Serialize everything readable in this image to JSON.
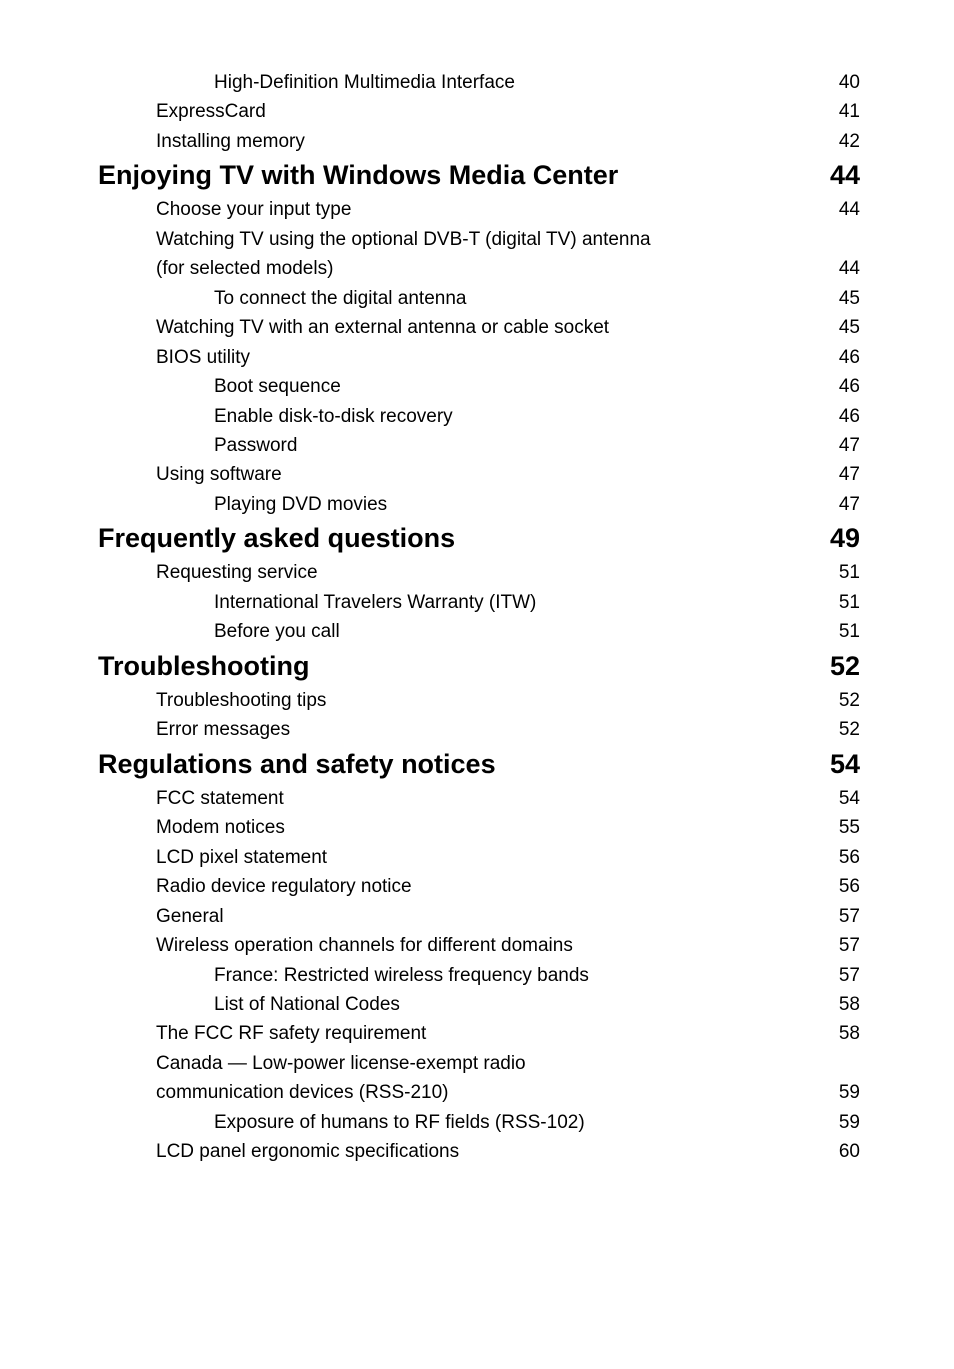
{
  "font": {
    "family": "Arial, Helvetica, sans-serif",
    "color": "#000000",
    "l1_size_pt": 20,
    "l2_size_pt": 14,
    "l3_size_pt": 14
  },
  "background_color": "#ffffff",
  "toc": [
    {
      "level": 3,
      "label": "High-Definition Multimedia Interface",
      "page": "40"
    },
    {
      "level": 2,
      "label": "ExpressCard",
      "page": "41"
    },
    {
      "level": 2,
      "label": "Installing memory",
      "page": "42"
    },
    {
      "level": 1,
      "label": "Enjoying TV with Windows Media Center",
      "page": "44"
    },
    {
      "level": 2,
      "label": "Choose your input type",
      "page": "44"
    },
    {
      "level": 2,
      "label": "Watching TV using the optional DVB-T (digital TV) antenna",
      "page": ""
    },
    {
      "level": 2,
      "label": "(for selected models)",
      "page": "44"
    },
    {
      "level": 3,
      "label": "To connect the digital antenna",
      "page": "45"
    },
    {
      "level": 2,
      "label": "Watching TV with an external antenna or cable socket",
      "page": "45"
    },
    {
      "level": 2,
      "label": "BIOS utility",
      "page": "46"
    },
    {
      "level": 3,
      "label": "Boot sequence",
      "page": "46"
    },
    {
      "level": 3,
      "label": "Enable disk-to-disk recovery",
      "page": "46"
    },
    {
      "level": 3,
      "label": "Password",
      "page": "47"
    },
    {
      "level": 2,
      "label": "Using software",
      "page": "47"
    },
    {
      "level": 3,
      "label": "Playing DVD movies",
      "page": "47"
    },
    {
      "level": 1,
      "label": "Frequently asked questions",
      "page": "49"
    },
    {
      "level": 2,
      "label": "Requesting service",
      "page": "51"
    },
    {
      "level": 3,
      "label": "International Travelers Warranty (ITW)",
      "page": "51"
    },
    {
      "level": 3,
      "label": "Before you call",
      "page": "51"
    },
    {
      "level": 1,
      "label": "Troubleshooting",
      "page": "52"
    },
    {
      "level": 2,
      "label": "Troubleshooting tips",
      "page": "52"
    },
    {
      "level": 2,
      "label": "Error messages",
      "page": "52"
    },
    {
      "level": 1,
      "label": "Regulations and safety notices",
      "page": "54"
    },
    {
      "level": 2,
      "label": "FCC statement",
      "page": "54"
    },
    {
      "level": 2,
      "label": "Modem notices",
      "page": "55"
    },
    {
      "level": 2,
      "label": "LCD pixel statement",
      "page": "56"
    },
    {
      "level": 2,
      "label": "Radio device regulatory notice",
      "page": "56"
    },
    {
      "level": 2,
      "label": "General",
      "page": "57"
    },
    {
      "level": 2,
      "label": "Wireless operation channels for different domains",
      "page": "57"
    },
    {
      "level": 3,
      "label": "France: Restricted wireless frequency bands",
      "page": "57"
    },
    {
      "level": 3,
      "label": "List of National Codes",
      "page": "58"
    },
    {
      "level": 2,
      "label": "The FCC RF safety requirement",
      "page": "58"
    },
    {
      "level": 2,
      "label": "Canada — Low-power license-exempt radio",
      "page": ""
    },
    {
      "level": 2,
      "label": "communication devices (RSS-210)",
      "page": "59"
    },
    {
      "level": 3,
      "label": "Exposure of humans to RF fields (RSS-102)",
      "page": "59"
    },
    {
      "level": 2,
      "label": "LCD panel ergonomic specifications",
      "page": "60"
    }
  ]
}
